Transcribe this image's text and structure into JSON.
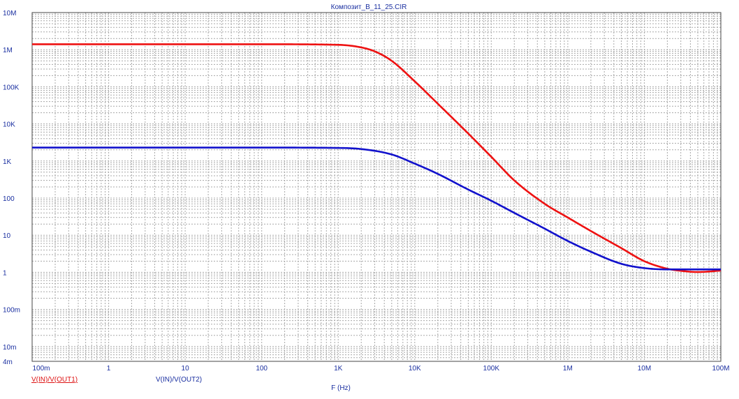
{
  "window": {
    "title": "Композит_B_11_25.CIR"
  },
  "chart_data": {
    "type": "line",
    "title": "Композит_B_11_25.CIR",
    "xlabel": "F (Hz)",
    "ylabel": "",
    "x_scale": "log",
    "y_scale": "log",
    "xlim": [
      0.1,
      100000000
    ],
    "ylim": [
      0.004,
      10000000
    ],
    "grid": true,
    "x_ticks": [
      {
        "value": 0.1,
        "label": "100m"
      },
      {
        "value": 1,
        "label": "1"
      },
      {
        "value": 10,
        "label": "10"
      },
      {
        "value": 100,
        "label": "100"
      },
      {
        "value": 1000,
        "label": "1K"
      },
      {
        "value": 10000,
        "label": "10K"
      },
      {
        "value": 100000,
        "label": "100K"
      },
      {
        "value": 1000000,
        "label": "1M"
      },
      {
        "value": 10000000,
        "label": "10M"
      },
      {
        "value": 100000000,
        "label": "100M"
      }
    ],
    "y_ticks": [
      {
        "value": 10000000,
        "label": "10M"
      },
      {
        "value": 1000000,
        "label": "1M"
      },
      {
        "value": 100000,
        "label": "100K"
      },
      {
        "value": 10000,
        "label": "10K"
      },
      {
        "value": 1000,
        "label": "1K"
      },
      {
        "value": 100,
        "label": "100"
      },
      {
        "value": 10,
        "label": "10"
      },
      {
        "value": 1,
        "label": "1"
      },
      {
        "value": 0.1,
        "label": "100m"
      },
      {
        "value": 0.01,
        "label": "10m"
      },
      {
        "value": 0.004,
        "label": "4m"
      }
    ],
    "series": [
      {
        "name": "V(IN)/V(OUT1)",
        "color": "#ee1111",
        "x": [
          0.1,
          1,
          10,
          100,
          1000,
          2000,
          3000,
          5000,
          10000,
          20000,
          50000,
          100000,
          200000,
          500000,
          1000000,
          2000000,
          5000000,
          10000000,
          20000000,
          30000000,
          50000000,
          70000000,
          100000000
        ],
        "y": [
          1400000,
          1400000,
          1400000,
          1400000,
          1350000,
          1150000,
          900000,
          500000,
          140000,
          35000,
          5500,
          1300,
          300,
          70,
          30,
          13,
          4.5,
          2,
          1.25,
          1.1,
          1.02,
          1.05,
          1.12
        ]
      },
      {
        "name": "V(IN)/V(OUT2)",
        "color": "#1111cc",
        "x": [
          0.1,
          1,
          10,
          100,
          1000,
          2000,
          5000,
          10000,
          20000,
          50000,
          100000,
          200000,
          500000,
          1000000,
          2000000,
          5000000,
          10000000,
          20000000,
          50000000,
          100000000
        ],
        "y": [
          2300,
          2300,
          2300,
          2300,
          2250,
          2100,
          1500,
          850,
          450,
          170,
          85,
          40,
          15,
          7,
          3.6,
          1.7,
          1.3,
          1.2,
          1.2,
          1.2
        ]
      }
    ]
  }
}
